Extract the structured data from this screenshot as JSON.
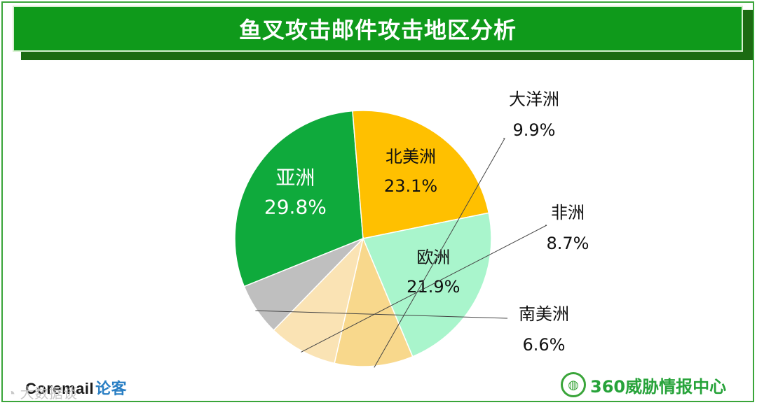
{
  "header": {
    "title": "鱼叉攻击邮件攻击地区分析"
  },
  "chart_data": {
    "type": "pie",
    "title": "鱼叉攻击邮件攻击地区分析",
    "unit": "%",
    "slices": [
      {
        "label": "亚洲",
        "value": 29.8,
        "value_text": "29.8%",
        "color": "#0faa3c"
      },
      {
        "label": "北美洲",
        "value": 23.1,
        "value_text": "23.1%",
        "color": "#ffc000"
      },
      {
        "label": "欧洲",
        "value": 21.9,
        "value_text": "21.9%",
        "color": "#a9f5cc"
      },
      {
        "label": "大洋洲",
        "value": 9.9,
        "value_text": "9.9%",
        "color": "#f8d88c"
      },
      {
        "label": "非洲",
        "value": 8.7,
        "value_text": "8.7%",
        "color": "#fae3b4"
      },
      {
        "label": "南美洲",
        "value": 6.6,
        "value_text": "6.6%",
        "color": "#bfbfbf"
      }
    ],
    "label_placement": {
      "亚洲": "inside",
      "北美洲": "inside",
      "欧洲": "inside",
      "大洋洲": "outside",
      "非洲": "outside",
      "南美洲": "outside"
    }
  },
  "footer": {
    "brand_left": "Coremail",
    "brand_left_accent": "论客",
    "watermark": "大数据谈",
    "brand_right": "360威胁情报中心"
  },
  "colors": {
    "title_bar": "#0f9a1b",
    "frame": "#3aa53a",
    "brand_green": "#27a33a",
    "brand_blue": "#2a7fc4"
  },
  "icons": {
    "emblem": "globe-wreath-icon",
    "watermark_logo": "wechat-icon"
  }
}
